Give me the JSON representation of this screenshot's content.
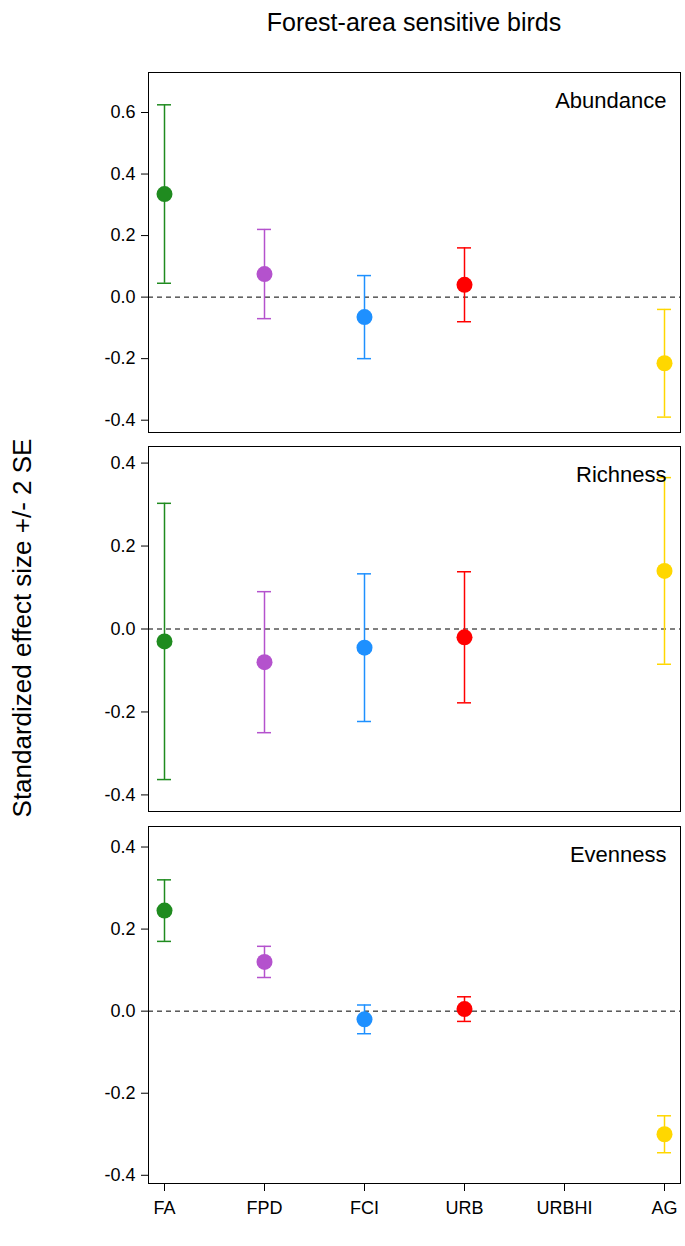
{
  "chart_data": {
    "type": "dot_errorbar",
    "title": "Forest-area sensitive birds",
    "y_label": "Standardized effect size +/- 2 SE",
    "categories": [
      "FA",
      "FPD",
      "FCI",
      "URB",
      "URBHI",
      "AG"
    ],
    "colors": [
      "#1f8b1f",
      "#b452cd",
      "#1e90ff",
      "#ff0000",
      null,
      "#ffd700"
    ],
    "panels": [
      {
        "title": "Abundance",
        "values": [
          0.335,
          0.075,
          -0.065,
          0.04,
          null,
          -0.215
        ],
        "errors": [
          0.29,
          0.145,
          0.135,
          0.12,
          null,
          0.175
        ],
        "ylim": [
          -0.44,
          0.73
        ],
        "yticks": [
          -0.4,
          -0.2,
          {
            "value": 0,
            "label": "0.0"
          },
          0.2,
          0.4,
          0.6
        ]
      },
      {
        "title": "Richness",
        "values": [
          -0.03,
          -0.08,
          -0.045,
          -0.02,
          null,
          0.14
        ],
        "errors": [
          0.333,
          0.17,
          0.178,
          0.158,
          null,
          0.225
        ],
        "ylim": [
          -0.44,
          0.44
        ],
        "yticks": [
          -0.4,
          -0.2,
          {
            "value": 0,
            "label": "0.0"
          },
          0.2,
          0.4
        ]
      },
      {
        "title": "Evenness",
        "values": [
          0.245,
          0.12,
          -0.02,
          0.005,
          null,
          -0.3
        ],
        "errors": [
          0.075,
          0.038,
          0.035,
          0.03,
          null,
          0.045
        ],
        "ylim": [
          -0.42,
          0.45
        ],
        "yticks": [
          -0.4,
          -0.2,
          {
            "value": 0,
            "label": "0.0"
          },
          0.2,
          0.4
        ]
      }
    ]
  }
}
